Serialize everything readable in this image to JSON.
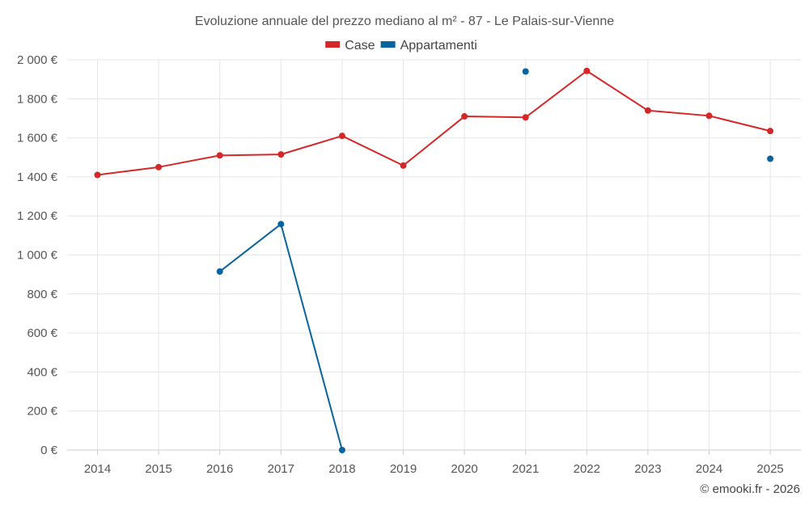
{
  "chart_data": {
    "type": "line",
    "title": "Evoluzione annuale del prezzo mediano al m² - 87 - Le Palais-sur-Vienne",
    "x": [
      "2014",
      "2015",
      "2016",
      "2017",
      "2018",
      "2019",
      "2020",
      "2021",
      "2022",
      "2023",
      "2024",
      "2025"
    ],
    "y_ticks": [
      0,
      200,
      400,
      600,
      800,
      1000,
      1200,
      1400,
      1600,
      1800,
      2000
    ],
    "y_tick_labels": [
      "0 €",
      "200 €",
      "400 €",
      "600 €",
      "800 €",
      "1 000 €",
      "1 200 €",
      "1 400 €",
      "1 600 €",
      "1 800 €",
      "2 000 €"
    ],
    "ylim": [
      0,
      2000
    ],
    "xlabel": "",
    "ylabel": "",
    "grid": true,
    "legend_position": "top-center",
    "series": [
      {
        "name": "Case",
        "color": "#d62728",
        "values": [
          1410,
          1450,
          1510,
          1515,
          1610,
          1458,
          1710,
          1705,
          1943,
          1740,
          1713,
          1635
        ]
      },
      {
        "name": "Appartamenti",
        "color": "#07649e",
        "values": [
          null,
          null,
          915,
          1158,
          0,
          null,
          null,
          1940,
          null,
          null,
          null,
          1493
        ]
      }
    ]
  },
  "credit": "© emooki.fr - 2026"
}
